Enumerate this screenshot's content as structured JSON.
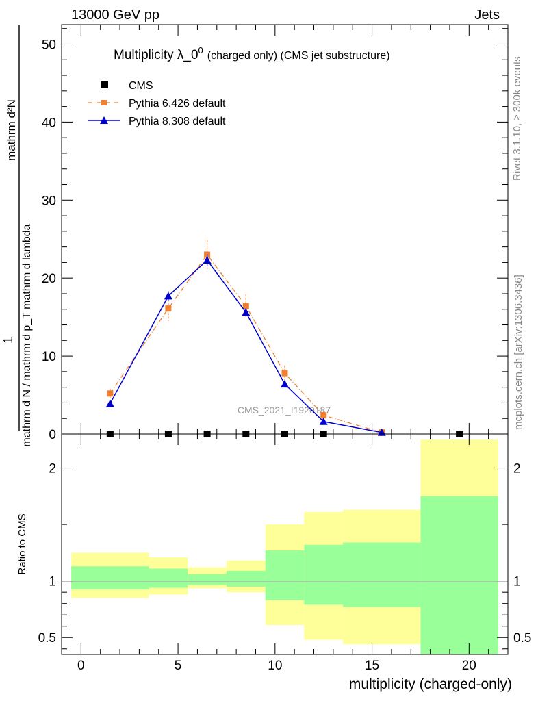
{
  "header": {
    "energy_label": "13000 GeV pp",
    "process_label": "Jets"
  },
  "side_labels": {
    "rivet": "Rivet 3.1.10, ≥ 300k events",
    "mcplots": "mcplots.cern.ch [arXiv:1306.3436]"
  },
  "watermark": "CMS_2021_I1920187",
  "colors": {
    "pythia6": "#f07f31",
    "pythia8": "#0000cd",
    "band_inner": "#99ff99",
    "band_outer": "#ffff99",
    "data": "#000000"
  },
  "chart_data": [
    {
      "type": "line",
      "title_main": "Multiplicity λ_0",
      "title_sup": "0",
      "title_sub": "(charged only) (CMS jet substructure)",
      "ylabel_numer": "mathrm d²N",
      "ylabel_denom": "mathrm d N / mathrm d p_T mathrm d lambda",
      "ylabel_prefix": "1",
      "ylim": [
        0,
        52.5
      ],
      "xlim": [
        -1,
        22
      ],
      "yticks": [
        0,
        10,
        20,
        30,
        40,
        50
      ],
      "ytick_labels": [
        "0",
        "10",
        "20",
        "30",
        "40",
        "50"
      ],
      "legend": [
        "CMS",
        "Pythia 6.426 default",
        "Pythia 8.308 default"
      ],
      "series": [
        {
          "name": "CMS",
          "x": [
            1.5,
            4.5,
            6.5,
            8.5,
            10.5,
            12.5,
            19.5
          ],
          "values": [
            0,
            0,
            0,
            0,
            0,
            0,
            0
          ]
        },
        {
          "name": "Pythia 6.426 default",
          "x": [
            1.5,
            4.5,
            6.5,
            8.5,
            10.5,
            12.5,
            15.5
          ],
          "values": [
            5.2,
            16.1,
            23.0,
            16.4,
            7.8,
            2.4,
            0.2
          ],
          "err": [
            0.6,
            1.6,
            1.9,
            1.5,
            1.0,
            0.5,
            0.1
          ]
        },
        {
          "name": "Pythia 8.308 default",
          "x": [
            1.5,
            4.5,
            6.5,
            8.5,
            10.5,
            12.5,
            15.5
          ],
          "values": [
            3.9,
            17.7,
            22.3,
            15.6,
            6.4,
            1.6,
            0.2
          ],
          "err": [
            0.2,
            0.6,
            0.8,
            0.5,
            0.3,
            0.1,
            0.05
          ]
        }
      ]
    },
    {
      "type": "area",
      "ylabel": "Ratio to CMS",
      "xlabel": "multiplicity (charged-only)",
      "xlim": [
        -1,
        22
      ],
      "ylim": [
        0.35,
        2.3
      ],
      "xticks": [
        0,
        5,
        10,
        15,
        20
      ],
      "xtick_labels": [
        "0",
        "5",
        "10",
        "15",
        "20"
      ],
      "yticks": [
        0.5,
        1,
        2
      ],
      "ytick_labels": [
        "0.5",
        "1",
        "2"
      ],
      "bins": [
        {
          "x0": -0.5,
          "x1": 3.5,
          "inner": [
            0.925,
            1.13
          ],
          "outer": [
            0.85,
            1.25
          ]
        },
        {
          "x0": 3.5,
          "x1": 5.5,
          "inner": [
            0.94,
            1.11
          ],
          "outer": [
            0.88,
            1.21
          ]
        },
        {
          "x0": 5.5,
          "x1": 7.5,
          "inner": [
            0.965,
            1.06
          ],
          "outer": [
            0.935,
            1.12
          ]
        },
        {
          "x0": 7.5,
          "x1": 9.5,
          "inner": [
            0.95,
            1.09
          ],
          "outer": [
            0.9,
            1.18
          ]
        },
        {
          "x0": 9.5,
          "x1": 11.5,
          "inner": [
            0.83,
            1.27
          ],
          "outer": [
            0.61,
            1.5
          ]
        },
        {
          "x0": 11.5,
          "x1": 13.5,
          "inner": [
            0.79,
            1.32
          ],
          "outer": [
            0.48,
            1.61
          ]
        },
        {
          "x0": 13.5,
          "x1": 17.5,
          "inner": [
            0.77,
            1.34
          ],
          "outer": [
            0.44,
            1.63
          ]
        },
        {
          "x0": 17.5,
          "x1": 21.5,
          "inner": [
            0.35,
            1.75
          ],
          "outer": [
            0.35,
            2.25
          ]
        }
      ]
    }
  ]
}
